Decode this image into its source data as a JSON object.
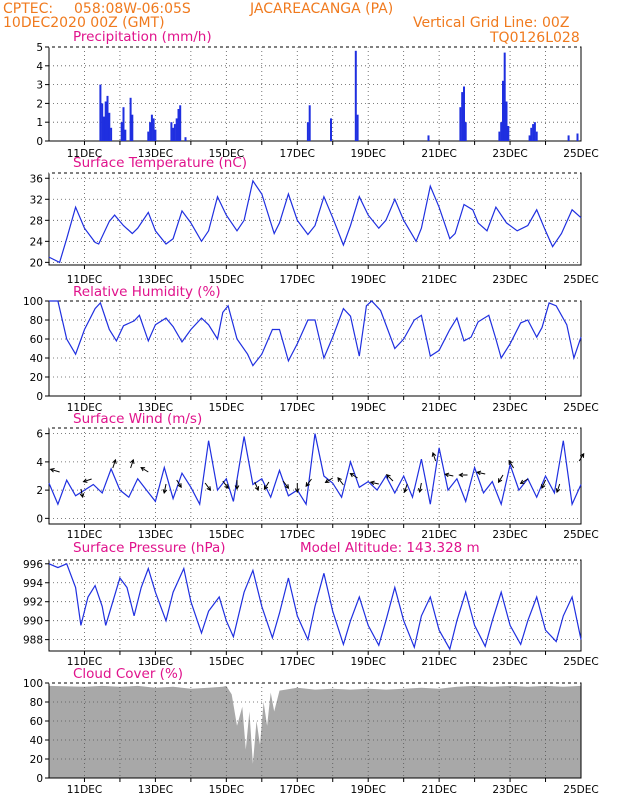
{
  "header": {
    "source": "CPTEC:",
    "coords": "058:08W-06:05S",
    "station": "JACAREACANGA (PA)",
    "datetime": "10DEC2020 00Z (GMT)",
    "grid_note": "Vertical Grid Line: 00Z",
    "code": "TQ0126L028"
  },
  "colors": {
    "header": "#f07a1e",
    "title": "#e0138c",
    "line": "#1f2fe0",
    "cloud": "#a8a8a8"
  },
  "x_labels": [
    "11DEC",
    "13DEC",
    "15DEC",
    "17DEC",
    "19DEC",
    "21DEC",
    "23DEC",
    "25DEC"
  ],
  "chart_data": [
    {
      "type": "bar",
      "title": "Precipitation (mm/h)",
      "ylim": [
        0,
        5
      ],
      "yticks": [
        0,
        1,
        2,
        3,
        4,
        5
      ],
      "x_range_days": [
        10,
        25
      ],
      "bars": [
        [
          11.45,
          3.0
        ],
        [
          11.5,
          2.0
        ],
        [
          11.55,
          1.3
        ],
        [
          11.6,
          2.1
        ],
        [
          11.65,
          2.4
        ],
        [
          11.7,
          1.5
        ],
        [
          11.75,
          0.7
        ],
        [
          12.05,
          1.0
        ],
        [
          12.1,
          1.8
        ],
        [
          12.15,
          0.6
        ],
        [
          12.3,
          2.3
        ],
        [
          12.35,
          1.4
        ],
        [
          12.8,
          0.5
        ],
        [
          12.85,
          1.0
        ],
        [
          12.9,
          1.4
        ],
        [
          12.95,
          1.2
        ],
        [
          13.0,
          0.6
        ],
        [
          13.45,
          1.0
        ],
        [
          13.5,
          0.7
        ],
        [
          13.55,
          0.9
        ],
        [
          13.6,
          1.2
        ],
        [
          13.65,
          1.7
        ],
        [
          13.7,
          1.9
        ],
        [
          13.85,
          0.2
        ],
        [
          17.3,
          1.0
        ],
        [
          17.35,
          1.9
        ],
        [
          17.95,
          1.2
        ],
        [
          18.65,
          4.8
        ],
        [
          18.7,
          1.4
        ],
        [
          20.7,
          0.3
        ],
        [
          21.6,
          1.8
        ],
        [
          21.65,
          2.6
        ],
        [
          21.7,
          2.9
        ],
        [
          21.75,
          1.0
        ],
        [
          22.7,
          0.5
        ],
        [
          22.75,
          1.0
        ],
        [
          22.8,
          3.2
        ],
        [
          22.85,
          4.7
        ],
        [
          22.9,
          2.1
        ],
        [
          22.95,
          0.8
        ],
        [
          23.55,
          0.3
        ],
        [
          23.6,
          0.7
        ],
        [
          23.65,
          0.9
        ],
        [
          23.7,
          1.0
        ],
        [
          23.75,
          0.5
        ],
        [
          24.65,
          0.3
        ],
        [
          24.9,
          0.4
        ]
      ]
    },
    {
      "type": "line",
      "title": "Surface Temperature (nC)",
      "ylim": [
        19.5,
        37
      ],
      "yticks": [
        20,
        24,
        28,
        32,
        36
      ],
      "x_range_days": [
        10,
        25
      ],
      "points": [
        [
          10.0,
          21.0
        ],
        [
          10.3,
          20.0
        ],
        [
          10.5,
          24.5
        ],
        [
          10.75,
          30.5
        ],
        [
          11.0,
          26.5
        ],
        [
          11.3,
          23.8
        ],
        [
          11.4,
          23.5
        ],
        [
          11.7,
          27.8
        ],
        [
          11.85,
          29.0
        ],
        [
          12.1,
          27.0
        ],
        [
          12.35,
          25.5
        ],
        [
          12.5,
          26.5
        ],
        [
          12.8,
          29.5
        ],
        [
          13.0,
          26.0
        ],
        [
          13.3,
          23.5
        ],
        [
          13.5,
          24.5
        ],
        [
          13.75,
          29.8
        ],
        [
          14.0,
          27.5
        ],
        [
          14.3,
          24.0
        ],
        [
          14.5,
          26.0
        ],
        [
          14.75,
          32.5
        ],
        [
          15.0,
          29.0
        ],
        [
          15.3,
          26.0
        ],
        [
          15.5,
          28.0
        ],
        [
          15.75,
          35.5
        ],
        [
          16.0,
          33.0
        ],
        [
          16.35,
          25.5
        ],
        [
          16.5,
          27.5
        ],
        [
          16.75,
          33.0
        ],
        [
          17.0,
          28.0
        ],
        [
          17.3,
          25.3
        ],
        [
          17.5,
          27.0
        ],
        [
          17.75,
          32.5
        ],
        [
          18.0,
          28.5
        ],
        [
          18.3,
          23.3
        ],
        [
          18.5,
          27.0
        ],
        [
          18.75,
          32.5
        ],
        [
          19.0,
          29.0
        ],
        [
          19.3,
          26.5
        ],
        [
          19.5,
          28.0
        ],
        [
          19.75,
          32.0
        ],
        [
          20.0,
          28.0
        ],
        [
          20.35,
          24.0
        ],
        [
          20.5,
          26.5
        ],
        [
          20.75,
          34.5
        ],
        [
          21.0,
          30.5
        ],
        [
          21.3,
          24.5
        ],
        [
          21.45,
          25.5
        ],
        [
          21.7,
          31.0
        ],
        [
          21.95,
          30.0
        ],
        [
          22.1,
          27.5
        ],
        [
          22.35,
          26.0
        ],
        [
          22.6,
          30.5
        ],
        [
          22.9,
          27.5
        ],
        [
          23.2,
          26.0
        ],
        [
          23.5,
          27.0
        ],
        [
          23.75,
          30.0
        ],
        [
          24.0,
          26.0
        ],
        [
          24.2,
          23.0
        ],
        [
          24.45,
          25.5
        ],
        [
          24.75,
          30.0
        ],
        [
          25.0,
          28.5
        ]
      ]
    },
    {
      "type": "line",
      "title": "Relative Humidity (%)",
      "ylim": [
        0,
        100
      ],
      "yticks": [
        0,
        20,
        40,
        60,
        80,
        100
      ],
      "x_range_days": [
        10,
        25
      ],
      "points": [
        [
          10.0,
          100
        ],
        [
          10.25,
          100
        ],
        [
          10.5,
          60
        ],
        [
          10.75,
          44
        ],
        [
          11.0,
          70
        ],
        [
          11.3,
          92
        ],
        [
          11.45,
          98
        ],
        [
          11.7,
          70
        ],
        [
          11.9,
          58
        ],
        [
          12.1,
          74
        ],
        [
          12.4,
          79
        ],
        [
          12.55,
          85
        ],
        [
          12.8,
          58
        ],
        [
          13.0,
          75
        ],
        [
          13.3,
          82
        ],
        [
          13.5,
          73
        ],
        [
          13.75,
          57
        ],
        [
          14.0,
          70
        ],
        [
          14.3,
          82
        ],
        [
          14.5,
          75
        ],
        [
          14.75,
          60
        ],
        [
          14.9,
          88
        ],
        [
          15.05,
          95
        ],
        [
          15.3,
          60
        ],
        [
          15.6,
          44
        ],
        [
          15.75,
          32
        ],
        [
          16.0,
          44
        ],
        [
          16.3,
          70
        ],
        [
          16.5,
          70
        ],
        [
          16.75,
          37
        ],
        [
          17.0,
          55
        ],
        [
          17.3,
          80
        ],
        [
          17.5,
          80
        ],
        [
          17.75,
          40
        ],
        [
          18.0,
          62
        ],
        [
          18.3,
          92
        ],
        [
          18.5,
          84
        ],
        [
          18.75,
          42
        ],
        [
          18.95,
          95
        ],
        [
          19.1,
          100
        ],
        [
          19.35,
          90
        ],
        [
          19.75,
          50
        ],
        [
          20.0,
          60
        ],
        [
          20.3,
          80
        ],
        [
          20.5,
          85
        ],
        [
          20.75,
          42
        ],
        [
          21.0,
          48
        ],
        [
          21.3,
          70
        ],
        [
          21.5,
          82
        ],
        [
          21.7,
          58
        ],
        [
          21.9,
          62
        ],
        [
          22.1,
          78
        ],
        [
          22.4,
          85
        ],
        [
          22.6,
          60
        ],
        [
          22.75,
          40
        ],
        [
          23.0,
          55
        ],
        [
          23.3,
          77
        ],
        [
          23.5,
          80
        ],
        [
          23.75,
          62
        ],
        [
          23.9,
          72
        ],
        [
          24.1,
          98
        ],
        [
          24.3,
          95
        ],
        [
          24.6,
          75
        ],
        [
          24.8,
          40
        ],
        [
          25.0,
          62
        ]
      ]
    },
    {
      "type": "line",
      "title": "Surface Wind (m/s)",
      "ylim": [
        -0.4,
        6.4
      ],
      "yticks": [
        0,
        2,
        4,
        6
      ],
      "x_range_days": [
        10,
        25
      ],
      "points": [
        [
          10.0,
          2.5
        ],
        [
          10.25,
          1.0
        ],
        [
          10.5,
          2.7
        ],
        [
          10.75,
          1.6
        ],
        [
          11.0,
          2.0
        ],
        [
          11.25,
          2.4
        ],
        [
          11.5,
          1.8
        ],
        [
          11.75,
          3.5
        ],
        [
          12.0,
          2.0
        ],
        [
          12.25,
          1.5
        ],
        [
          12.5,
          2.8
        ],
        [
          12.75,
          2.0
        ],
        [
          13.0,
          1.2
        ],
        [
          13.25,
          3.6
        ],
        [
          13.5,
          1.4
        ],
        [
          13.75,
          3.2
        ],
        [
          14.0,
          2.2
        ],
        [
          14.25,
          1.0
        ],
        [
          14.5,
          5.5
        ],
        [
          14.75,
          2.0
        ],
        [
          15.0,
          2.8
        ],
        [
          15.2,
          1.2
        ],
        [
          15.5,
          5.8
        ],
        [
          15.75,
          2.4
        ],
        [
          16.0,
          2.8
        ],
        [
          16.25,
          1.5
        ],
        [
          16.5,
          3.4
        ],
        [
          16.75,
          1.6
        ],
        [
          17.0,
          2.0
        ],
        [
          17.25,
          1.0
        ],
        [
          17.5,
          6.0
        ],
        [
          17.75,
          3.0
        ],
        [
          18.0,
          2.5
        ],
        [
          18.25,
          1.5
        ],
        [
          18.5,
          4.0
        ],
        [
          18.75,
          2.2
        ],
        [
          19.0,
          2.6
        ],
        [
          19.25,
          2.0
        ],
        [
          19.5,
          3.0
        ],
        [
          19.75,
          1.8
        ],
        [
          20.0,
          3.0
        ],
        [
          20.25,
          1.5
        ],
        [
          20.5,
          4.2
        ],
        [
          20.75,
          1.0
        ],
        [
          21.0,
          5.0
        ],
        [
          21.25,
          2.0
        ],
        [
          21.5,
          2.8
        ],
        [
          21.75,
          1.2
        ],
        [
          22.0,
          3.6
        ],
        [
          22.25,
          1.8
        ],
        [
          22.5,
          2.6
        ],
        [
          22.75,
          1.0
        ],
        [
          23.0,
          3.8
        ],
        [
          23.25,
          2.0
        ],
        [
          23.5,
          2.8
        ],
        [
          23.75,
          1.5
        ],
        [
          24.0,
          3.0
        ],
        [
          24.25,
          1.8
        ],
        [
          24.5,
          5.5
        ],
        [
          24.75,
          1.0
        ],
        [
          25.0,
          2.4
        ]
      ]
    },
    {
      "type": "line",
      "title": "Surface Pressure (hPa)",
      "annotation": "Model Altitude: 143.328 m",
      "ylim": [
        986.8,
        996.4
      ],
      "yticks": [
        988,
        990,
        992,
        994,
        996
      ],
      "x_range_days": [
        10,
        25
      ],
      "points": [
        [
          10.0,
          996.0
        ],
        [
          10.25,
          995.6
        ],
        [
          10.5,
          996.0
        ],
        [
          10.75,
          993.5
        ],
        [
          10.9,
          989.5
        ],
        [
          11.1,
          992.5
        ],
        [
          11.3,
          993.7
        ],
        [
          11.5,
          991.5
        ],
        [
          11.6,
          989.5
        ],
        [
          11.8,
          992.0
        ],
        [
          12.0,
          994.5
        ],
        [
          12.2,
          993.5
        ],
        [
          12.4,
          990.5
        ],
        [
          12.6,
          993.5
        ],
        [
          12.8,
          995.5
        ],
        [
          13.0,
          993.0
        ],
        [
          13.3,
          990.0
        ],
        [
          13.5,
          993.0
        ],
        [
          13.8,
          995.5
        ],
        [
          14.0,
          992.0
        ],
        [
          14.3,
          988.7
        ],
        [
          14.5,
          991.0
        ],
        [
          14.8,
          992.5
        ],
        [
          15.0,
          990.0
        ],
        [
          15.2,
          988.3
        ],
        [
          15.5,
          993.0
        ],
        [
          15.75,
          995.3
        ],
        [
          16.0,
          991.5
        ],
        [
          16.3,
          988.2
        ],
        [
          16.5,
          990.8
        ],
        [
          16.75,
          994.5
        ],
        [
          17.0,
          990.5
        ],
        [
          17.3,
          988.0
        ],
        [
          17.5,
          991.5
        ],
        [
          17.75,
          995.0
        ],
        [
          18.0,
          991.0
        ],
        [
          18.3,
          987.5
        ],
        [
          18.5,
          990.0
        ],
        [
          18.75,
          992.5
        ],
        [
          19.0,
          989.5
        ],
        [
          19.3,
          987.4
        ],
        [
          19.5,
          990.0
        ],
        [
          19.75,
          993.5
        ],
        [
          20.0,
          990.0
        ],
        [
          20.3,
          987.2
        ],
        [
          20.5,
          990.5
        ],
        [
          20.75,
          992.5
        ],
        [
          21.0,
          989.0
        ],
        [
          21.3,
          987.0
        ],
        [
          21.5,
          990.0
        ],
        [
          21.75,
          993.0
        ],
        [
          22.0,
          989.5
        ],
        [
          22.3,
          987.3
        ],
        [
          22.5,
          990.0
        ],
        [
          22.75,
          993.0
        ],
        [
          23.0,
          989.5
        ],
        [
          23.3,
          987.5
        ],
        [
          23.5,
          990.0
        ],
        [
          23.75,
          992.5
        ],
        [
          24.0,
          989.0
        ],
        [
          24.3,
          987.8
        ],
        [
          24.5,
          990.5
        ],
        [
          24.75,
          992.5
        ],
        [
          25.0,
          988.0
        ]
      ]
    },
    {
      "type": "area",
      "title": "Cloud Cover (%)",
      "ylim": [
        0,
        100
      ],
      "yticks": [
        0,
        20,
        40,
        60,
        80,
        100
      ],
      "x_range_days": [
        10,
        25
      ],
      "points": [
        [
          10.0,
          97
        ],
        [
          11.0,
          96
        ],
        [
          11.5,
          97
        ],
        [
          12.0,
          96
        ],
        [
          12.5,
          97
        ],
        [
          13.0,
          95
        ],
        [
          13.5,
          96
        ],
        [
          14.0,
          94
        ],
        [
          14.5,
          95
        ],
        [
          14.9,
          96
        ],
        [
          15.0,
          97
        ],
        [
          15.15,
          88
        ],
        [
          15.3,
          55
        ],
        [
          15.45,
          75
        ],
        [
          15.55,
          30
        ],
        [
          15.65,
          70
        ],
        [
          15.75,
          15
        ],
        [
          15.85,
          60
        ],
        [
          15.95,
          35
        ],
        [
          16.05,
          80
        ],
        [
          16.15,
          55
        ],
        [
          16.25,
          90
        ],
        [
          16.35,
          70
        ],
        [
          16.5,
          92
        ],
        [
          17.0,
          95
        ],
        [
          17.5,
          93
        ],
        [
          18.0,
          94
        ],
        [
          18.5,
          93
        ],
        [
          19.0,
          94
        ],
        [
          19.5,
          93
        ],
        [
          20.0,
          94
        ],
        [
          20.5,
          95
        ],
        [
          21.0,
          94
        ],
        [
          21.5,
          96
        ],
        [
          22.0,
          97
        ],
        [
          22.5,
          96
        ],
        [
          23.0,
          97
        ],
        [
          23.5,
          96
        ],
        [
          24.0,
          97
        ],
        [
          24.5,
          96
        ],
        [
          25.0,
          97
        ]
      ]
    }
  ]
}
